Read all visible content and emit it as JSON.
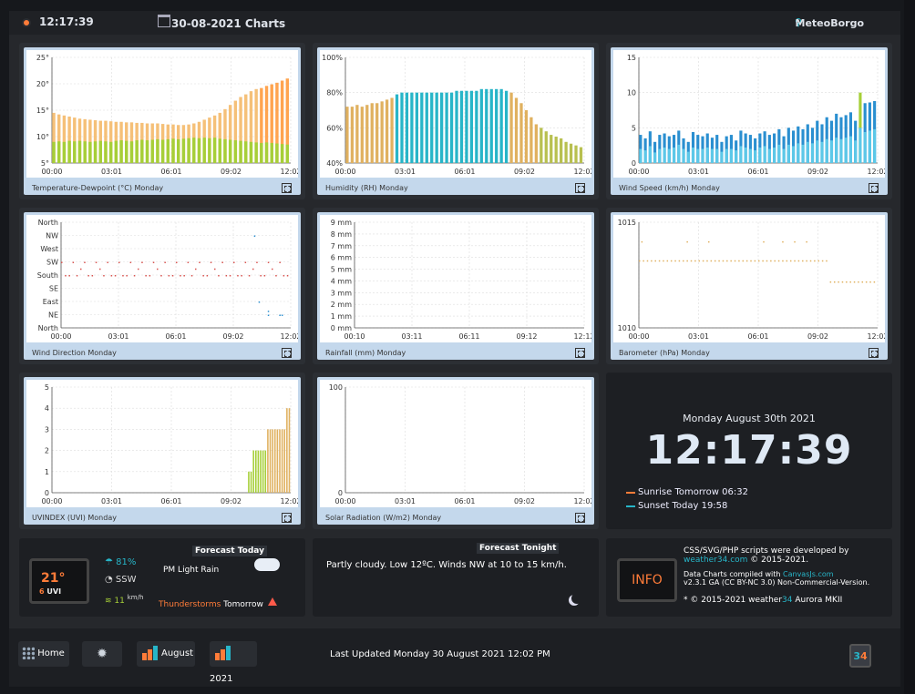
{
  "header": {
    "time": "12:17:39",
    "title": "30-08-2021 Charts",
    "location": "MeteoBorgo"
  },
  "charts": [
    {
      "id": "temp",
      "caption": "Temperature-Dewpoint (°C) Monday",
      "chart_data": {
        "type": "bar",
        "ylabels": [
          "25°",
          "20°",
          "15°",
          "10°",
          "5°"
        ],
        "xlabels": [
          "00:00",
          "03:01",
          "06:01",
          "09:02",
          "12:02"
        ],
        "ylim": [
          5,
          25
        ],
        "series": [
          {
            "name": "Temperature",
            "color": "#f5c078",
            "values": [
              14.5,
              14.2,
              14,
              13.8,
              13.6,
              13.4,
              13.3,
              13.2,
              13.1,
              13,
              13,
              12.9,
              12.8,
              12.8,
              12.7,
              12.7,
              12.6,
              12.6,
              12.5,
              12.5,
              12.5,
              12.4,
              12.3,
              12.3,
              12.2,
              12.2,
              12.3,
              12.5,
              12.8,
              13.2,
              13.6,
              14,
              14.5,
              15.2,
              16,
              16.8,
              17.5,
              18,
              18.6,
              19,
              19.2,
              19.6,
              19.9,
              20.2,
              20.6,
              21
            ]
          },
          {
            "name": "Dewpoint",
            "color": "#a6cf38",
            "values": [
              9,
              9.1,
              9,
              9.2,
              9.1,
              9.2,
              9.1,
              9,
              9.1,
              9.2,
              9.1,
              9,
              9.2,
              9.3,
              9.2,
              9.1,
              9.3,
              9.4,
              9.3,
              9.4,
              9.5,
              9.4,
              9.5,
              9.6,
              9.5,
              9.6,
              9.7,
              9.8,
              9.7,
              9.8,
              9.7,
              9.8,
              9.6,
              9.5,
              9.4,
              9.3,
              9.2,
              9.1,
              9,
              8.9,
              8.8,
              8.9,
              8.8,
              8.7,
              8.6,
              8.5
            ]
          }
        ]
      }
    },
    {
      "id": "hum",
      "caption": "Humidity (RH) Monday",
      "chart_data": {
        "type": "bar",
        "ylabels": [
          "100%",
          "80%",
          "60%",
          "40%"
        ],
        "xlabels": [
          "00:00",
          "03:01",
          "06:01",
          "09:02",
          "12:02"
        ],
        "ylim": [
          40,
          100
        ],
        "series": [
          {
            "name": "Humidity",
            "values": [
              72,
              72,
              73,
              72,
              73,
              74,
              74,
              75,
              76,
              77,
              79,
              80,
              80,
              80,
              80,
              80,
              80,
              80,
              80,
              80,
              80,
              80,
              81,
              81,
              81,
              81,
              81,
              82,
              82,
              82,
              82,
              82,
              81,
              80,
              77,
              74,
              70,
              66,
              62,
              60,
              58,
              56,
              55,
              54,
              52,
              51,
              50,
              49
            ]
          }
        ]
      }
    },
    {
      "id": "wind",
      "caption": "Wind Speed (km/h) Monday",
      "chart_data": {
        "type": "bar",
        "ylabels": [
          "15",
          "10",
          "5",
          "0"
        ],
        "xlabels": [
          "00:00",
          "03:01",
          "06:01",
          "09:02",
          "12:02"
        ],
        "ylim": [
          0,
          15
        ],
        "series": [
          {
            "name": "Gust",
            "color": "#2a8fd0",
            "values": [
              4,
              3.5,
              4.5,
              3,
              4,
              4.2,
              3.8,
              4,
              4.6,
              3.5,
              3,
              4.4,
              4,
              3.8,
              4.2,
              3.6,
              4,
              3,
              3.8,
              4,
              3.2,
              4.6,
              4.2,
              4,
              3.5,
              4.2,
              4.5,
              4,
              4.2,
              4.8,
              3.8,
              5,
              4.6,
              5.2,
              4.8,
              5.5,
              5,
              6,
              5.5,
              6.5,
              6,
              7,
              6.5,
              6.8,
              7.2,
              6,
              10,
              8.5,
              8.6,
              8.8
            ]
          },
          {
            "name": "Speed",
            "color": "#5cc8e8",
            "values": [
              2,
              1.8,
              2.4,
              1.5,
              2,
              2.2,
              2,
              2.2,
              2.6,
              2,
              1.6,
              2.2,
              2,
              2,
              2.2,
              2,
              2,
              1.6,
              2,
              2,
              1.8,
              2.4,
              2.2,
              2,
              1.8,
              2.2,
              2.4,
              2,
              2.2,
              2.6,
              2,
              2.6,
              2.4,
              2.8,
              2.6,
              3,
              2.8,
              3.2,
              3,
              3.4,
              3.2,
              3.6,
              3.4,
              3.6,
              3.8,
              3.2,
              5,
              4.4,
              4.6,
              4.8
            ]
          }
        ]
      }
    },
    {
      "id": "dir",
      "caption": "Wind Direction Monday",
      "chart_data": {
        "type": "scatter",
        "ylabels": [
          "North",
          "NW",
          "West",
          "SW",
          "South",
          "SE",
          "East",
          "NE",
          "North"
        ],
        "xlabels": [
          "00:00",
          "03:01",
          "06:01",
          "09:02",
          "12:02"
        ]
      }
    },
    {
      "id": "rain",
      "caption": "Rainfall (mm) Monday",
      "chart_data": {
        "type": "line",
        "ylabels": [
          "9 mm",
          "8 mm",
          "7 mm",
          "6 mm",
          "5 mm",
          "4 mm",
          "3 mm",
          "2 mm",
          "1 mm",
          "0 mm"
        ],
        "xlabels": [
          "00:10",
          "03:11",
          "06:11",
          "09:12",
          "12:12"
        ],
        "ylim": [
          0,
          9
        ],
        "series": [
          {
            "name": "Rainfall",
            "values": [
              0
            ]
          }
        ]
      }
    },
    {
      "id": "baro",
      "caption": "Barometer (hPa) Monday",
      "chart_data": {
        "type": "scatter",
        "ylabels": [
          "1015",
          "1010"
        ],
        "xlabels": [
          "00:00",
          "03:01",
          "06:01",
          "09:02",
          "12:02"
        ],
        "ylim": [
          1010,
          1015
        ]
      }
    },
    {
      "id": "uv",
      "caption": "UVINDEX (UVI) Monday",
      "chart_data": {
        "type": "bar",
        "ylabels": [
          "5",
          "4",
          "3",
          "2",
          "1",
          "0"
        ],
        "xlabels": [
          "00:00",
          "03:01",
          "06:01",
          "09:02",
          "12:02"
        ],
        "ylim": [
          0,
          5
        ],
        "series": [
          {
            "name": "UVI",
            "values": [
              1,
              1,
              2,
              2,
              2,
              2,
              2,
              2,
              3,
              3,
              3,
              3,
              3,
              3,
              3,
              3,
              4,
              4
            ]
          }
        ]
      }
    },
    {
      "id": "solar",
      "caption": "Solar Radiation (W/m2) Monday",
      "chart_data": {
        "type": "line",
        "ylabels": [
          "100",
          "0"
        ],
        "xlabels": [
          "00:00",
          "03:01",
          "06:01",
          "09:02",
          "12:02"
        ],
        "ylim": [
          0,
          100
        ]
      }
    }
  ],
  "clock": {
    "date": "Monday August 30th 2021",
    "time": "12:17:39",
    "sunrise": "Sunrise Tomorrow 06:32",
    "sunset": "Sunset Today 19:58"
  },
  "forecast_today": {
    "title": "Forecast Today",
    "temp": "21°",
    "uvi_val": "6",
    "uvi_label": "UVI",
    "humidity": "81%",
    "direction": "SSW",
    "wind": "11",
    "wind_unit": "km/h",
    "condition": "PM Light Rain",
    "storm_word": "Thunderstorms",
    "storm_when": "Tomorrow"
  },
  "forecast_tonight": {
    "title": "Forecast Tonight",
    "text": "Partly cloudy. Low 12ºC. Winds NW at 10 to 15 km/h."
  },
  "info": {
    "logo": "INFO",
    "line1": "CSS/SVG/PHP scripts were developed by",
    "site": "weather34.com",
    "line1b": "© 2015-2021.",
    "line2": "Data Charts compiled with",
    "canvas": "CanvasJs.com",
    "line2b": "v2.3.1 GA (CC BY-NC 3.0) Non-Commercial-Version.",
    "line3a": "* © 2015-2021 weather",
    "line3b": "34",
    "line3c": " Aurora MKII"
  },
  "footer": {
    "home": "Home",
    "august": "August",
    "year": "2021",
    "updated": "Last Updated Monday 30 August 2021 12:02 PM",
    "badge_a": "3",
    "badge_b": "4"
  }
}
